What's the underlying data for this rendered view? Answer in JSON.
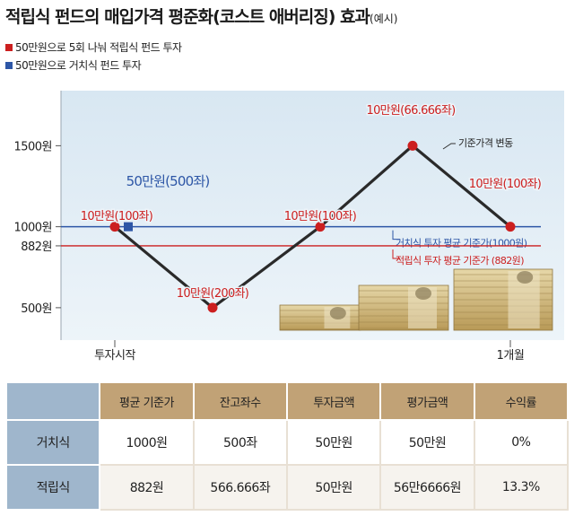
{
  "title": {
    "main": "적립식 펀드의 매입가격 평준화(코스트 애버리징) 효과",
    "sub": "(예시)"
  },
  "legend": [
    {
      "label": "50만원으로 5회 나눠 적립식 펀드 투자",
      "color": "#cc1f1f"
    },
    {
      "label": "50만원으로 거치식 펀드 투자",
      "color": "#2d56a6"
    }
  ],
  "chart_data": {
    "type": "line",
    "y_ticks": [
      {
        "value": 1500,
        "label": "1500원"
      },
      {
        "value": 1000,
        "label": "1000원"
      },
      {
        "value": 882,
        "label": "882원"
      },
      {
        "value": 500,
        "label": "500원"
      }
    ],
    "x_labels": [
      "투자시작",
      "1개월"
    ],
    "series": [
      {
        "name": "기준가격 변동",
        "x": [
          0,
          1,
          2,
          3,
          4
        ],
        "values": [
          1000,
          500,
          1000,
          1500,
          1000
        ],
        "color": "#2a2a2a"
      }
    ],
    "point_labels": [
      "10만원(100좌)",
      "10만원(200좌)",
      "10만원(100좌)",
      "10만원(66.666좌)",
      "10만원(100좌)"
    ],
    "point_color": "#cc1f1f",
    "lump_sum": {
      "value": 1000,
      "label": "50만원(500좌)",
      "color": "#2d56a6"
    },
    "reference_lines": [
      {
        "value": 1000,
        "label": "거치식 투자 평균 기준가(1000원)",
        "color": "#2d56a6"
      },
      {
        "value": 882,
        "label": "적립식 투자 평균 기준가 (882원)",
        "color": "#cc1f1f"
      }
    ],
    "line_annotation": "기준가격 변동",
    "ylim": [
      300,
      1840
    ]
  },
  "table": {
    "headers": [
      "평균 기준가",
      "잔고좌수",
      "투자금액",
      "평가금액",
      "수익률"
    ],
    "rows": [
      {
        "name": "거치식",
        "cells": [
          "1000원",
          "500좌",
          "50만원",
          "50만원",
          "0%"
        ]
      },
      {
        "name": "적립식",
        "cells": [
          "882원",
          "566.666좌",
          "50만원",
          "56만6666원",
          "13.3%"
        ]
      }
    ]
  }
}
